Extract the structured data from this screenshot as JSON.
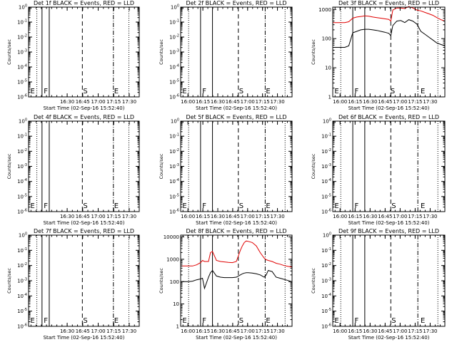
{
  "figure": {
    "colors": {
      "events": "#000000",
      "lld": "#e00000"
    }
  },
  "chart_data": [
    {
      "type": "line",
      "title": "Det 1f BLACK = Events, RED = LLD",
      "xlabel": "Start Time (02-Sep-16 15:52:40)",
      "ylabel": "Counts/sec",
      "x_ticks": [
        "16:30",
        "16:45",
        "17:00",
        "17:15",
        "17:30"
      ],
      "x_tick_min": [
        37.33,
        52.33,
        67.33,
        82.33,
        97.33
      ],
      "xlim": [
        0,
        107
      ],
      "y_scale": "log",
      "y_ticks": [
        "10^0",
        "10^-1",
        "10^-2",
        "10^-3",
        "10^-4",
        "10^-5",
        "10^-6"
      ],
      "ylim": [
        -6,
        0
      ],
      "dotted_lines": [
        8,
        97
      ],
      "solid_lines": [
        13,
        20
      ],
      "dashed_lines": [
        52
      ],
      "dashdot_lines": [
        82
      ],
      "markers": [
        {
          "label": "E",
          "x": 1
        },
        {
          "label": "F",
          "x": 14
        },
        {
          "label": "S",
          "x": 52
        },
        {
          "label": "E",
          "x": 82
        }
      ],
      "series": []
    },
    {
      "type": "line",
      "title": "Det 2f BLACK = Events, RED = LLD",
      "xlabel": "Start Time (02-Sep-16 15:52:40)",
      "ylabel": "Counts/sec",
      "x_ticks": [
        "16:00",
        "16:15",
        "16:30",
        "16:45",
        "17:00",
        "17:15",
        "17:30"
      ],
      "x_tick_min": [
        7.33,
        22.33,
        37.33,
        52.33,
        67.33,
        82.33,
        97.33
      ],
      "xlim": [
        0,
        112
      ],
      "y_scale": "log",
      "y_ticks": [
        "10^0",
        "10^-1",
        "10^-2",
        "10^-3",
        "10^-4",
        "10^-5",
        "10^-6"
      ],
      "ylim": [
        -6,
        0
      ],
      "dotted_lines": [
        8,
        105
      ],
      "solid_lines": [
        20,
        32
      ],
      "dashed_lines": [
        58
      ],
      "dashdot_lines": [
        85
      ],
      "markers": [
        {
          "label": "E",
          "x": 1
        },
        {
          "label": "F",
          "x": 21
        },
        {
          "label": "S",
          "x": 58
        },
        {
          "label": "E",
          "x": 85
        }
      ],
      "series": []
    },
    {
      "type": "line",
      "title": "Det 3f BLACK = Events, RED = LLD",
      "xlabel": "Start Time (02-Sep-16 15:52:40)",
      "ylabel": "Counts/sec",
      "x_ticks": [
        "16:00",
        "16:15",
        "16:30",
        "16:45",
        "17:00",
        "17:15",
        "17:30"
      ],
      "x_tick_min": [
        7.33,
        22.33,
        37.33,
        52.33,
        67.33,
        82.33,
        97.33
      ],
      "xlim": [
        0,
        112
      ],
      "y_scale": "log",
      "y_ticks": [
        "1",
        "10",
        "100",
        "1000"
      ],
      "ylim": [
        0,
        3.08
      ],
      "dotted_lines": [
        8,
        105
      ],
      "solid_lines": [
        20,
        32
      ],
      "dashed_lines": [
        58
      ],
      "dashdot_lines": [
        85
      ],
      "markers": [
        {
          "label": "E",
          "x": 1
        },
        {
          "label": "F",
          "x": 21
        },
        {
          "label": "S",
          "x": 57
        },
        {
          "label": "E",
          "x": 87
        }
      ],
      "series": [
        {
          "color": "red",
          "x": [
            0,
            4,
            8,
            12,
            16,
            20,
            24,
            28,
            32,
            36,
            40,
            44,
            48,
            52,
            56,
            58,
            60,
            64,
            68,
            72,
            76,
            80,
            84,
            88,
            92,
            96,
            100,
            104,
            108,
            112
          ],
          "y": [
            2.55,
            2.55,
            2.55,
            2.55,
            2.58,
            2.7,
            2.74,
            2.76,
            2.78,
            2.77,
            2.74,
            2.72,
            2.7,
            2.68,
            2.66,
            2.6,
            2.98,
            3.05,
            3.05,
            3.03,
            3.1,
            3.05,
            2.98,
            2.95,
            2.9,
            2.85,
            2.8,
            2.72,
            2.65,
            2.6
          ]
        },
        {
          "color": "black",
          "x": [
            0,
            4,
            8,
            12,
            16,
            20,
            24,
            28,
            32,
            36,
            40,
            44,
            48,
            52,
            56,
            58,
            60,
            64,
            68,
            72,
            76,
            80,
            84,
            88,
            92,
            96,
            100,
            104,
            108,
            112
          ],
          "y": [
            1.7,
            1.7,
            1.7,
            1.7,
            1.75,
            2.2,
            2.25,
            2.3,
            2.32,
            2.32,
            2.3,
            2.28,
            2.25,
            2.22,
            2.18,
            2.1,
            2.45,
            2.6,
            2.62,
            2.55,
            2.65,
            2.6,
            2.5,
            2.25,
            2.15,
            2.05,
            1.95,
            1.85,
            1.8,
            1.75
          ]
        }
      ]
    },
    {
      "type": "line",
      "title": "Det 4f BLACK = Events, RED = LLD",
      "xlabel": "Start Time (02-Sep-16 15:52:40)",
      "ylabel": "Counts/sec",
      "x_ticks": [
        "16:30",
        "16:45",
        "17:00",
        "17:15",
        "17:30"
      ],
      "x_tick_min": [
        37.33,
        52.33,
        67.33,
        82.33,
        97.33
      ],
      "xlim": [
        0,
        107
      ],
      "y_scale": "log",
      "y_ticks": [
        "10^0",
        "10^-1",
        "10^-2",
        "10^-3",
        "10^-4",
        "10^-5",
        "10^-6"
      ],
      "ylim": [
        -6,
        0
      ],
      "dotted_lines": [
        8,
        97
      ],
      "solid_lines": [
        13,
        20
      ],
      "dashed_lines": [
        52
      ],
      "dashdot_lines": [
        82
      ],
      "markers": [
        {
          "label": "E",
          "x": 1
        },
        {
          "label": "F",
          "x": 14
        },
        {
          "label": "S",
          "x": 52
        },
        {
          "label": "E",
          "x": 82
        }
      ],
      "series": []
    },
    {
      "type": "line",
      "title": "Det 5f BLACK = Events, RED = LLD",
      "xlabel": "Start Time (02-Sep-16 15:52:40)",
      "ylabel": "Counts/sec",
      "x_ticks": [
        "16:00",
        "16:15",
        "16:30",
        "16:45",
        "17:00",
        "17:15",
        "17:30"
      ],
      "x_tick_min": [
        7.33,
        22.33,
        37.33,
        52.33,
        67.33,
        82.33,
        97.33
      ],
      "xlim": [
        0,
        112
      ],
      "y_scale": "log",
      "y_ticks": [
        "10^0",
        "10^-1",
        "10^-2",
        "10^-3",
        "10^-4",
        "10^-5",
        "10^-6"
      ],
      "ylim": [
        -6,
        0
      ],
      "dotted_lines": [
        8,
        105
      ],
      "solid_lines": [
        20,
        32
      ],
      "dashed_lines": [
        58
      ],
      "dashdot_lines": [
        85
      ],
      "markers": [
        {
          "label": "E",
          "x": 1
        },
        {
          "label": "F",
          "x": 21
        },
        {
          "label": "S",
          "x": 58
        },
        {
          "label": "E",
          "x": 85
        }
      ],
      "series": []
    },
    {
      "type": "line",
      "title": "Det 6f BLACK = Events, RED = LLD",
      "xlabel": "Start Time (02-Sep-16 15:52:40)",
      "ylabel": "Counts/sec",
      "x_ticks": [
        "16:00",
        "16:15",
        "16:30",
        "16:45",
        "17:00",
        "17:15",
        "17:30"
      ],
      "x_tick_min": [
        7.33,
        22.33,
        37.33,
        52.33,
        67.33,
        82.33,
        97.33
      ],
      "xlim": [
        0,
        112
      ],
      "y_scale": "log",
      "y_ticks": [
        "10^0",
        "10^-1",
        "10^-2",
        "10^-3",
        "10^-4",
        "10^-5",
        "10^-6"
      ],
      "ylim": [
        -6,
        0
      ],
      "dotted_lines": [
        8,
        105
      ],
      "solid_lines": [
        20,
        32
      ],
      "dashed_lines": [
        58
      ],
      "dashdot_lines": [
        85
      ],
      "markers": [
        {
          "label": "E",
          "x": 1
        },
        {
          "label": "F",
          "x": 21
        },
        {
          "label": "S",
          "x": 58
        },
        {
          "label": "E",
          "x": 87
        }
      ],
      "series": []
    },
    {
      "type": "line",
      "title": "Det 7f BLACK = Events, RED = LLD",
      "xlabel": "Start Time (02-Sep-16 15:52:40)",
      "ylabel": "Counts/sec",
      "x_ticks": [
        "16:30",
        "16:45",
        "17:00",
        "17:15",
        "17:30"
      ],
      "x_tick_min": [
        37.33,
        52.33,
        67.33,
        82.33,
        97.33
      ],
      "xlim": [
        0,
        107
      ],
      "y_scale": "log",
      "y_ticks": [
        "10^0",
        "10^-1",
        "10^-2",
        "10^-3",
        "10^-4",
        "10^-5",
        "10^-6"
      ],
      "ylim": [
        -6,
        0
      ],
      "dotted_lines": [
        8,
        97
      ],
      "solid_lines": [
        13,
        20
      ],
      "dashed_lines": [
        52
      ],
      "dashdot_lines": [
        82
      ],
      "markers": [
        {
          "label": "E",
          "x": 1
        },
        {
          "label": "F",
          "x": 14
        },
        {
          "label": "S",
          "x": 52
        },
        {
          "label": "E",
          "x": 82
        }
      ],
      "series": []
    },
    {
      "type": "line",
      "title": "Det 8f BLACK = Events, RED = LLD",
      "xlabel": "Start Time (02-Sep-16 15:52:40)",
      "ylabel": "Counts/sec",
      "x_ticks": [
        "16:00",
        "16:15",
        "16:30",
        "16:45",
        "17:00",
        "17:15",
        "17:30"
      ],
      "x_tick_min": [
        7.33,
        22.33,
        37.33,
        52.33,
        67.33,
        82.33,
        97.33
      ],
      "xlim": [
        0,
        112
      ],
      "y_scale": "log",
      "y_ticks": [
        "1",
        "10",
        "100",
        "1000",
        "10000"
      ],
      "ylim": [
        0,
        4.08
      ],
      "dotted_lines": [
        8,
        105
      ],
      "solid_lines": [
        20,
        32
      ],
      "dashed_lines": [
        58
      ],
      "dashdot_lines": [
        85
      ],
      "markers": [
        {
          "label": "E",
          "x": 1
        },
        {
          "label": "F",
          "x": 21
        },
        {
          "label": "S",
          "x": 58
        },
        {
          "label": "E",
          "x": 85
        }
      ],
      "series": [
        {
          "color": "red",
          "x": [
            0,
            4,
            8,
            12,
            16,
            20,
            22,
            24,
            28,
            30,
            32,
            36,
            40,
            44,
            48,
            52,
            56,
            60,
            62,
            64,
            66,
            68,
            72,
            76,
            80,
            84,
            86,
            88,
            92,
            96,
            100,
            104,
            108,
            112
          ],
          "y": [
            2.7,
            2.7,
            2.7,
            2.7,
            2.75,
            2.85,
            2.95,
            2.9,
            2.9,
            3.3,
            3.35,
            2.95,
            2.9,
            2.88,
            2.86,
            2.85,
            2.9,
            3.4,
            3.6,
            3.75,
            3.82,
            3.8,
            3.75,
            3.6,
            3.3,
            3.05,
            2.98,
            2.95,
            2.9,
            2.82,
            2.78,
            2.72,
            2.68,
            2.65
          ]
        },
        {
          "color": "black",
          "x": [
            0,
            4,
            8,
            12,
            16,
            20,
            22,
            24,
            28,
            30,
            32,
            36,
            40,
            44,
            48,
            52,
            56,
            60,
            62,
            64,
            66,
            68,
            72,
            76,
            80,
            84,
            86,
            88,
            92,
            96,
            100,
            104,
            108,
            112
          ],
          "y": [
            2.0,
            2.0,
            2.0,
            2.02,
            2.08,
            2.12,
            2.15,
            1.7,
            2.2,
            2.4,
            2.5,
            2.25,
            2.2,
            2.18,
            2.18,
            2.18,
            2.2,
            2.3,
            2.35,
            2.38,
            2.4,
            2.4,
            2.38,
            2.35,
            2.3,
            2.2,
            2.3,
            2.5,
            2.45,
            2.2,
            2.15,
            2.1,
            2.05,
            2.0
          ]
        }
      ]
    },
    {
      "type": "line",
      "title": "Det 9f BLACK = Events, RED = LLD",
      "xlabel": "Start Time (02-Sep-16 15:52:40)",
      "ylabel": "Counts/sec",
      "x_ticks": [
        "16:00",
        "16:15",
        "16:30",
        "16:45",
        "17:00",
        "17:15",
        "17:30"
      ],
      "x_tick_min": [
        7.33,
        22.33,
        37.33,
        52.33,
        67.33,
        82.33,
        97.33
      ],
      "xlim": [
        0,
        112
      ],
      "y_scale": "log",
      "y_ticks": [
        "10^0",
        "10^-1",
        "10^-2",
        "10^-3",
        "10^-4",
        "10^-5",
        "10^-6"
      ],
      "ylim": [
        -6,
        0
      ],
      "dotted_lines": [
        8,
        105
      ],
      "solid_lines": [
        20,
        32
      ],
      "dashed_lines": [
        58
      ],
      "dashdot_lines": [
        85
      ],
      "markers": [
        {
          "label": "E",
          "x": 1
        },
        {
          "label": "F",
          "x": 21
        },
        {
          "label": "S",
          "x": 58
        },
        {
          "label": "E",
          "x": 87
        }
      ],
      "series": []
    }
  ]
}
